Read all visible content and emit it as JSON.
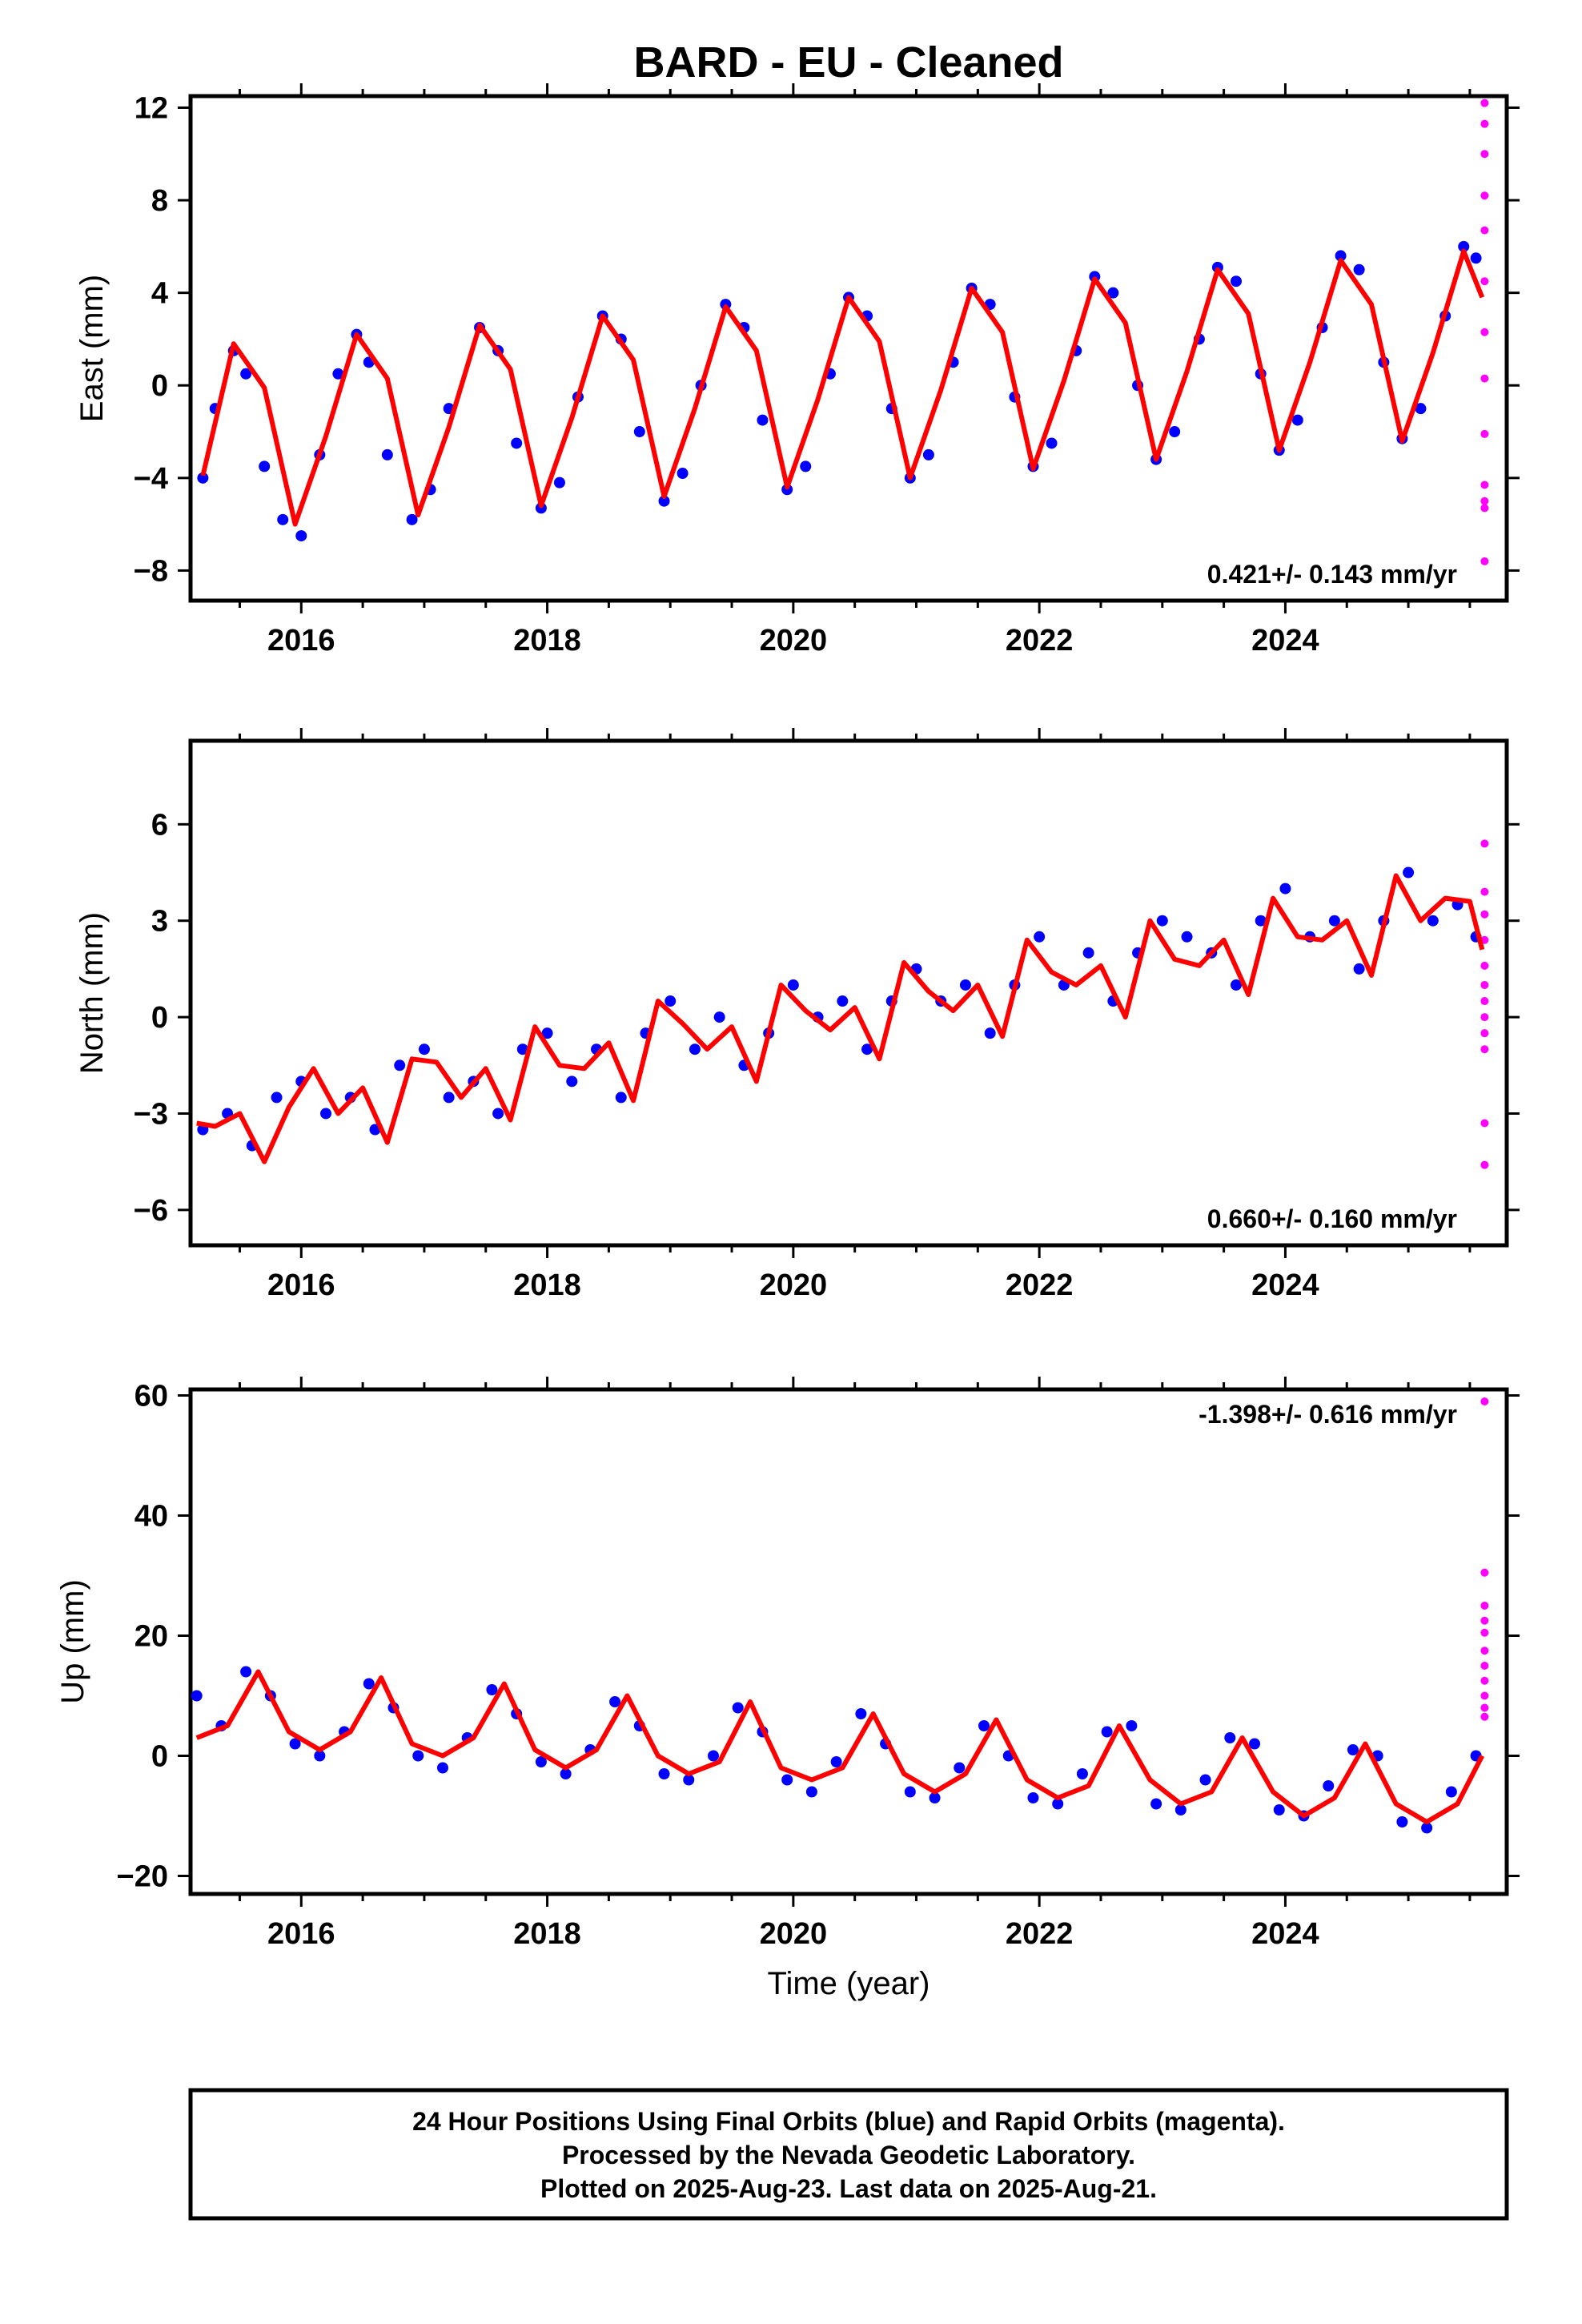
{
  "figure": {
    "title": "BARD  - EU - Cleaned",
    "xlabel": "Time (year)",
    "footer": [
      "24 Hour Positions Using Final Orbits (blue) and Rapid Orbits (magenta).",
      "Processed by the Nevada Geodetic Laboratory.",
      "Plotted on 2025-Aug-23. Last data on 2025-Aug-21."
    ]
  },
  "colors": {
    "final": "#0000ff",
    "rapid": "#ff00ff",
    "model": "#ff0000",
    "axes": "#000000"
  },
  "chart_data": [
    {
      "type": "scatter",
      "component": "East",
      "ylabel": "East (mm)",
      "xlim": [
        2015.1,
        2025.8
      ],
      "ylim": [
        -9.3,
        12.5
      ],
      "yticks": [
        -8,
        -4,
        0,
        4,
        8,
        12
      ],
      "xticks": [
        2016,
        2018,
        2020,
        2022,
        2024
      ],
      "rate_label": "0.421+/- 0.143 mm/yr",
      "rate_position": "bottom-right",
      "series": [
        {
          "kind": "final-orbits",
          "x": [
            2015.2,
            2015.3,
            2015.45,
            2015.55,
            2015.7,
            2015.85,
            2016.0,
            2016.15,
            2016.3,
            2016.45,
            2016.55,
            2016.7,
            2016.9,
            2017.05,
            2017.2,
            2017.45,
            2017.6,
            2017.75,
            2017.95,
            2018.1,
            2018.25,
            2018.45,
            2018.6,
            2018.75,
            2018.95,
            2019.1,
            2019.25,
            2019.45,
            2019.6,
            2019.75,
            2019.95,
            2020.1,
            2020.3,
            2020.45,
            2020.6,
            2020.8,
            2020.95,
            2021.1,
            2021.3,
            2021.45,
            2021.6,
            2021.8,
            2021.95,
            2022.1,
            2022.3,
            2022.45,
            2022.6,
            2022.8,
            2022.95,
            2023.1,
            2023.3,
            2023.45,
            2023.6,
            2023.8,
            2023.95,
            2024.1,
            2024.3,
            2024.45,
            2024.6,
            2024.8,
            2024.95,
            2025.1,
            2025.3,
            2025.45,
            2025.55
          ],
          "y": [
            -4.0,
            -1.0,
            1.5,
            0.5,
            -3.5,
            -5.8,
            -6.5,
            -3.0,
            0.5,
            2.2,
            1.0,
            -3.0,
            -5.8,
            -4.5,
            -1.0,
            2.5,
            1.5,
            -2.5,
            -5.3,
            -4.2,
            -0.5,
            3.0,
            2.0,
            -2.0,
            -5.0,
            -3.8,
            0.0,
            3.5,
            2.5,
            -1.5,
            -4.5,
            -3.5,
            0.5,
            3.8,
            3.0,
            -1.0,
            -4.0,
            -3.0,
            1.0,
            4.2,
            3.5,
            -0.5,
            -3.5,
            -2.5,
            1.5,
            4.7,
            4.0,
            0.0,
            -3.2,
            -2.0,
            2.0,
            5.1,
            4.5,
            0.5,
            -2.8,
            -1.5,
            2.5,
            5.6,
            5.0,
            1.0,
            -2.3,
            -1.0,
            3.0,
            6.0,
            5.5
          ]
        },
        {
          "kind": "rapid-orbits",
          "x": [
            2025.62,
            2025.62,
            2025.62,
            2025.62,
            2025.62,
            2025.62,
            2025.62,
            2025.62,
            2025.62,
            2025.62,
            2025.62,
            2025.62,
            2025.62
          ],
          "y": [
            12.2,
            11.3,
            10.0,
            8.2,
            6.7,
            4.5,
            2.3,
            0.3,
            -2.1,
            -4.3,
            -5.0,
            -5.3,
            -7.6
          ]
        },
        {
          "kind": "model",
          "x": [
            2015.2,
            2015.45,
            2015.7,
            2015.95,
            2016.2,
            2016.45,
            2016.7,
            2016.95,
            2017.2,
            2017.45,
            2017.7,
            2017.95,
            2018.2,
            2018.45,
            2018.7,
            2018.95,
            2019.2,
            2019.45,
            2019.7,
            2019.95,
            2020.2,
            2020.45,
            2020.7,
            2020.95,
            2021.2,
            2021.45,
            2021.7,
            2021.95,
            2022.2,
            2022.45,
            2022.7,
            2022.95,
            2023.2,
            2023.45,
            2023.7,
            2023.95,
            2024.2,
            2024.45,
            2024.7,
            2024.95,
            2025.2,
            2025.45,
            2025.6
          ],
          "y": [
            -3.9,
            1.8,
            -0.1,
            -6.0,
            -2.2,
            2.2,
            0.3,
            -5.6,
            -1.8,
            2.6,
            0.7,
            -5.2,
            -1.4,
            3.0,
            1.1,
            -4.8,
            -1.0,
            3.4,
            1.5,
            -4.4,
            -0.6,
            3.8,
            1.9,
            -4.0,
            -0.2,
            4.2,
            2.3,
            -3.6,
            0.2,
            4.6,
            2.7,
            -3.2,
            0.6,
            5.0,
            3.1,
            -2.8,
            1.0,
            5.4,
            3.5,
            -2.4,
            1.4,
            5.8,
            3.8
          ]
        }
      ]
    },
    {
      "type": "scatter",
      "component": "North",
      "ylabel": "North (mm)",
      "xlim": [
        2015.1,
        2025.8
      ],
      "ylim": [
        -7.1,
        8.6
      ],
      "yticks": [
        -6,
        -3,
        0,
        3,
        6
      ],
      "xticks": [
        2016,
        2018,
        2020,
        2022,
        2024
      ],
      "rate_label": "0.660+/- 0.160 mm/yr",
      "rate_position": "bottom-right",
      "series": [
        {
          "kind": "final-orbits",
          "x": [
            2015.2,
            2015.4,
            2015.6,
            2015.8,
            2016.0,
            2016.2,
            2016.4,
            2016.6,
            2016.8,
            2017.0,
            2017.2,
            2017.4,
            2017.6,
            2017.8,
            2018.0,
            2018.2,
            2018.4,
            2018.6,
            2018.8,
            2019.0,
            2019.2,
            2019.4,
            2019.6,
            2019.8,
            2020.0,
            2020.2,
            2020.4,
            2020.6,
            2020.8,
            2021.0,
            2021.2,
            2021.4,
            2021.6,
            2021.8,
            2022.0,
            2022.2,
            2022.4,
            2022.6,
            2022.8,
            2023.0,
            2023.2,
            2023.4,
            2023.6,
            2023.8,
            2024.0,
            2024.2,
            2024.4,
            2024.6,
            2024.8,
            2025.0,
            2025.2,
            2025.4,
            2025.55
          ],
          "y": [
            -3.5,
            -3.0,
            -4.0,
            -2.5,
            -2.0,
            -3.0,
            -2.5,
            -3.5,
            -1.5,
            -1.0,
            -2.5,
            -2.0,
            -3.0,
            -1.0,
            -0.5,
            -2.0,
            -1.0,
            -2.5,
            -0.5,
            0.5,
            -1.0,
            0.0,
            -1.5,
            -0.5,
            1.0,
            0.0,
            0.5,
            -1.0,
            0.5,
            1.5,
            0.5,
            1.0,
            -0.5,
            1.0,
            2.5,
            1.0,
            2.0,
            0.5,
            2.0,
            3.0,
            2.5,
            2.0,
            1.0,
            3.0,
            4.0,
            2.5,
            3.0,
            1.5,
            3.0,
            4.5,
            3.0,
            3.5,
            2.5
          ]
        },
        {
          "kind": "rapid-orbits",
          "x": [
            2025.62,
            2025.62,
            2025.62,
            2025.62,
            2025.62,
            2025.62,
            2025.62,
            2025.62,
            2025.62,
            2025.62,
            2025.62,
            2025.62
          ],
          "y": [
            5.4,
            3.9,
            3.2,
            2.4,
            1.6,
            1.0,
            0.5,
            0.0,
            -0.5,
            -1.0,
            -3.3,
            -4.6
          ]
        },
        {
          "kind": "model",
          "x": [
            2015.15,
            2015.3,
            2015.5,
            2015.7,
            2015.9,
            2016.1,
            2016.3,
            2016.5,
            2016.7,
            2016.9,
            2017.1,
            2017.3,
            2017.5,
            2017.7,
            2017.9,
            2018.1,
            2018.3,
            2018.5,
            2018.7,
            2018.9,
            2019.1,
            2019.3,
            2019.5,
            2019.7,
            2019.9,
            2020.1,
            2020.3,
            2020.5,
            2020.7,
            2020.9,
            2021.1,
            2021.3,
            2021.5,
            2021.7,
            2021.9,
            2022.1,
            2022.3,
            2022.5,
            2022.7,
            2022.9,
            2023.1,
            2023.3,
            2023.5,
            2023.7,
            2023.9,
            2024.1,
            2024.3,
            2024.5,
            2024.7,
            2024.9,
            2025.1,
            2025.3,
            2025.5,
            2025.6
          ],
          "y": [
            -3.3,
            -3.4,
            -3.0,
            -4.5,
            -2.8,
            -1.6,
            -3.0,
            -2.2,
            -3.9,
            -1.3,
            -1.4,
            -2.5,
            -1.6,
            -3.2,
            -0.3,
            -1.5,
            -1.6,
            -0.8,
            -2.6,
            0.5,
            -0.2,
            -1.0,
            -0.3,
            -2.0,
            1.0,
            0.2,
            -0.4,
            0.3,
            -1.3,
            1.7,
            0.8,
            0.2,
            1.0,
            -0.6,
            2.4,
            1.4,
            1.0,
            1.6,
            0.0,
            3.0,
            1.8,
            1.6,
            2.4,
            0.7,
            3.7,
            2.5,
            2.4,
            3.0,
            1.3,
            4.4,
            3.0,
            3.7,
            3.6,
            2.1
          ]
        }
      ]
    },
    {
      "type": "scatter",
      "component": "Up",
      "ylabel": "Up (mm)",
      "xlim": [
        2015.1,
        2025.8
      ],
      "ylim": [
        -23,
        61
      ],
      "yticks": [
        -20,
        0,
        20,
        40,
        60
      ],
      "xticks": [
        2016,
        2018,
        2020,
        2022,
        2024
      ],
      "rate_label": "-1.398+/- 0.616 mm/yr",
      "rate_position": "top-right",
      "series": [
        {
          "kind": "final-orbits",
          "x": [
            2015.15,
            2015.35,
            2015.55,
            2015.75,
            2015.95,
            2016.15,
            2016.35,
            2016.55,
            2016.75,
            2016.95,
            2017.15,
            2017.35,
            2017.55,
            2017.75,
            2017.95,
            2018.15,
            2018.35,
            2018.55,
            2018.75,
            2018.95,
            2019.15,
            2019.35,
            2019.55,
            2019.75,
            2019.95,
            2020.15,
            2020.35,
            2020.55,
            2020.75,
            2020.95,
            2021.15,
            2021.35,
            2021.55,
            2021.75,
            2021.95,
            2022.15,
            2022.35,
            2022.55,
            2022.75,
            2022.95,
            2023.15,
            2023.35,
            2023.55,
            2023.75,
            2023.95,
            2024.15,
            2024.35,
            2024.55,
            2024.75,
            2024.95,
            2025.15,
            2025.35,
            2025.55
          ],
          "y": [
            10,
            5,
            14,
            10,
            2,
            0,
            4,
            12,
            8,
            0,
            -2,
            3,
            11,
            7,
            -1,
            -3,
            1,
            9,
            5,
            -3,
            -4,
            0,
            8,
            4,
            -4,
            -6,
            -1,
            7,
            2,
            -6,
            -7,
            -2,
            5,
            0,
            -7,
            -8,
            -3,
            4,
            5,
            -8,
            -9,
            -4,
            3,
            2,
            -9,
            -10,
            -5,
            1,
            0,
            -11,
            -12,
            -6,
            0
          ]
        },
        {
          "kind": "rapid-orbits",
          "x": [
            2025.62,
            2025.62,
            2025.62,
            2025.62,
            2025.62,
            2025.62,
            2025.62,
            2025.62,
            2025.62,
            2025.62,
            2025.62
          ],
          "y": [
            59,
            30.5,
            25,
            22.5,
            20.5,
            17.5,
            15,
            12.5,
            10,
            8,
            6.5
          ]
        },
        {
          "kind": "model",
          "x": [
            2015.15,
            2015.4,
            2015.65,
            2015.9,
            2016.15,
            2016.4,
            2016.65,
            2016.9,
            2017.15,
            2017.4,
            2017.65,
            2017.9,
            2018.15,
            2018.4,
            2018.65,
            2018.9,
            2019.15,
            2019.4,
            2019.65,
            2019.9,
            2020.15,
            2020.4,
            2020.65,
            2020.9,
            2021.15,
            2021.4,
            2021.65,
            2021.9,
            2022.15,
            2022.4,
            2022.65,
            2022.9,
            2023.15,
            2023.4,
            2023.65,
            2023.9,
            2024.15,
            2024.4,
            2024.65,
            2024.9,
            2025.15,
            2025.4,
            2025.6
          ],
          "y": [
            3,
            5,
            14,
            4,
            1,
            4,
            13,
            2,
            0,
            3,
            12,
            1,
            -2,
            1,
            10,
            0,
            -3,
            -1,
            9,
            -2,
            -4,
            -2,
            7,
            -3,
            -6,
            -3,
            6,
            -4,
            -7,
            -5,
            5,
            -4,
            -8,
            -6,
            3,
            -6,
            -10,
            -7,
            2,
            -8,
            -11,
            -8,
            0
          ]
        }
      ]
    }
  ]
}
